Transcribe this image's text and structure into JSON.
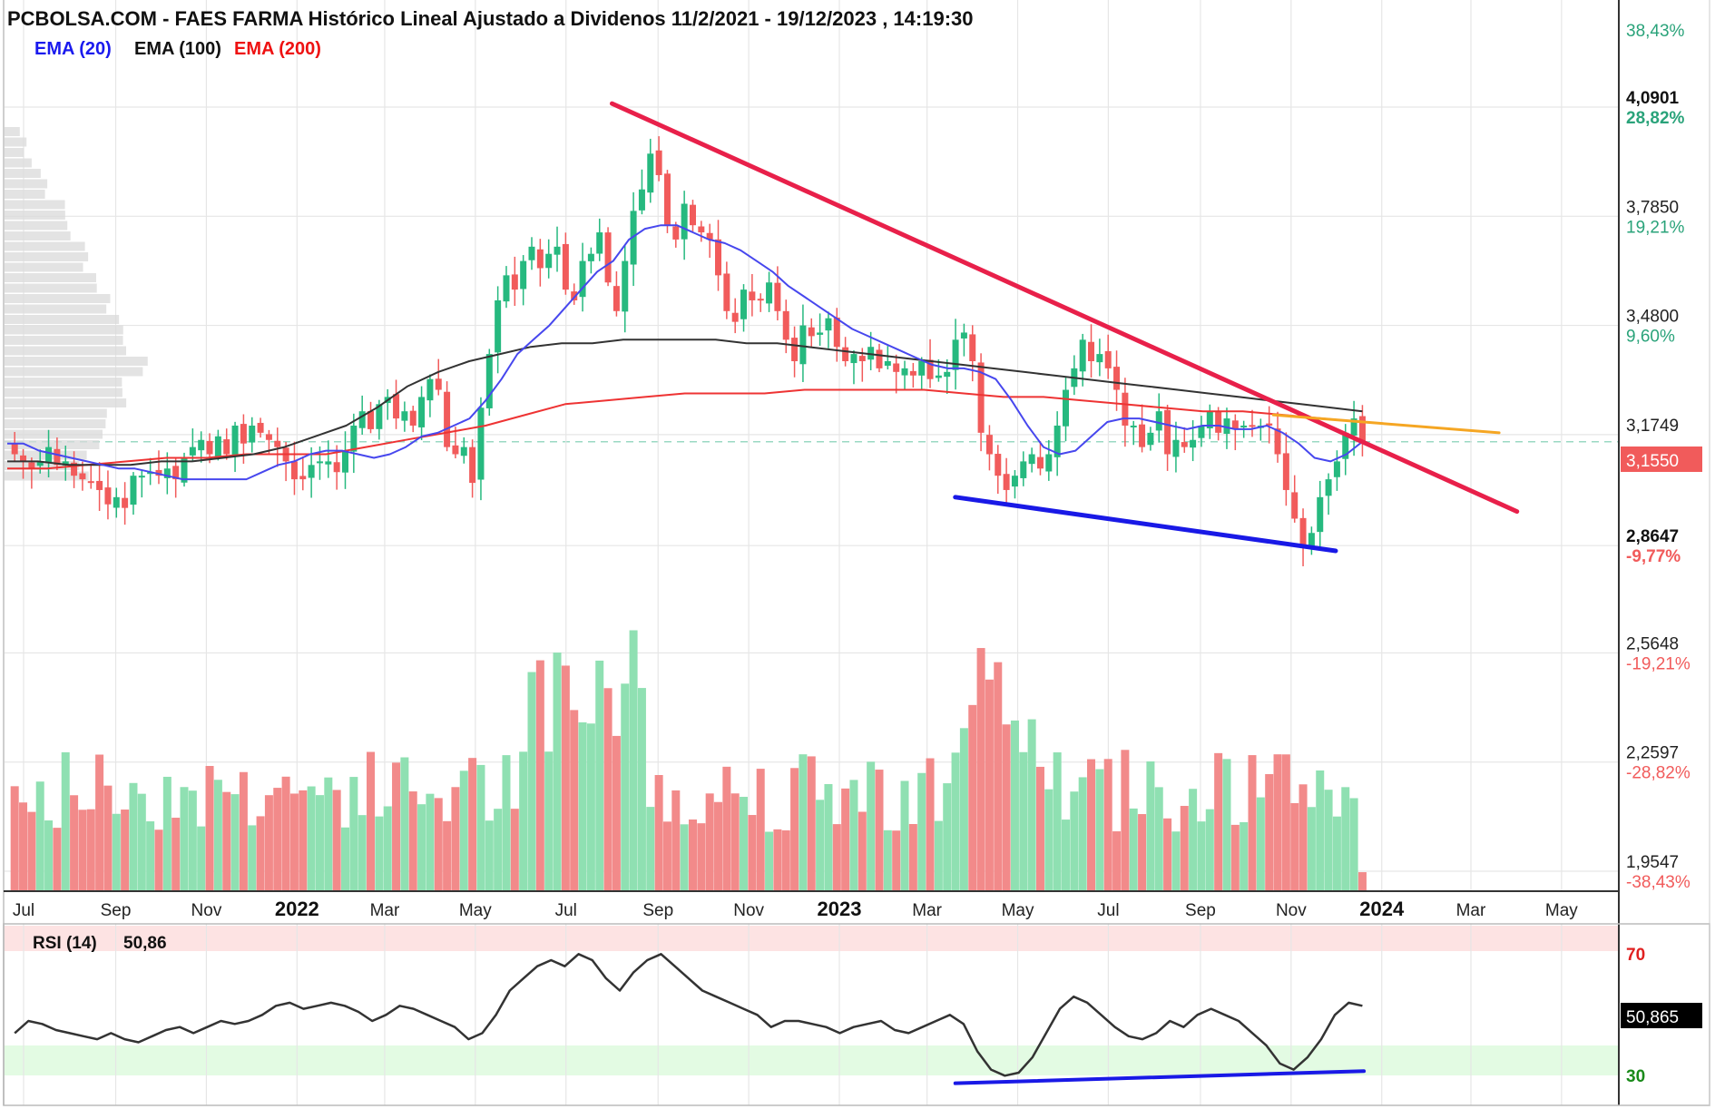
{
  "title": "PCBOLSA.COM - FAES FARMA Histórico Lineal Ajustado a Dividenos 11/2/2021 - 19/12/2023 , 14:19:30",
  "legend": [
    {
      "label": "EMA (20)",
      "color": "#1a1aee"
    },
    {
      "label": "EMA (100)",
      "color": "#111111"
    },
    {
      "label": "EMA (200)",
      "color": "#ee1111"
    }
  ],
  "chart_data": [
    {
      "type": "candlestick",
      "title": "PCBOLSA.COM - FAES FARMA Histórico Lineal Ajustado a Dividenos 11/2/2021 - 19/12/2023 , 14:19:30",
      "ylim": [
        1.9547,
        4.2
      ],
      "x_range": [
        "2021-06-20",
        "2024-05-31"
      ],
      "y_ticks": [
        {
          "price": "4,0901",
          "pct": "28,82%",
          "value": 4.0901,
          "bold": true
        },
        {
          "price": "3,7850",
          "pct": "19,21%",
          "value": 3.785
        },
        {
          "price": "3,4800",
          "pct": "9,60%",
          "value": 3.48
        },
        {
          "price": "3,1749",
          "pct": "",
          "value": 3.1749
        },
        {
          "price": "2,8647",
          "pct": "-9,77%",
          "value": 2.8647,
          "bold": true
        },
        {
          "price": "2,5648",
          "pct": "-19,21%",
          "value": 2.5648
        },
        {
          "price": "2,2597",
          "pct": "-28,82%",
          "value": 2.2597
        },
        {
          "price": "1,9547",
          "pct": "-38,43%",
          "value": 1.9547
        }
      ],
      "top_pct_label": "38,43%",
      "last_price": {
        "label": "3,1550",
        "value": 3.155
      },
      "x_ticks": [
        {
          "label": "Jul",
          "date": "2021-07-01",
          "bold": false
        },
        {
          "label": "Sep",
          "date": "2021-09-01",
          "bold": false
        },
        {
          "label": "Nov",
          "date": "2021-11-01",
          "bold": false
        },
        {
          "label": "2022",
          "date": "2022-01-01",
          "bold": true
        },
        {
          "label": "Mar",
          "date": "2022-03-01",
          "bold": false
        },
        {
          "label": "May",
          "date": "2022-05-01",
          "bold": false
        },
        {
          "label": "Jul",
          "date": "2022-07-01",
          "bold": false
        },
        {
          "label": "Sep",
          "date": "2022-09-01",
          "bold": false
        },
        {
          "label": "Nov",
          "date": "2022-11-01",
          "bold": false
        },
        {
          "label": "2023",
          "date": "2023-01-01",
          "bold": true
        },
        {
          "label": "Mar",
          "date": "2023-03-01",
          "bold": false
        },
        {
          "label": "May",
          "date": "2023-05-01",
          "bold": false
        },
        {
          "label": "Jul",
          "date": "2023-07-01",
          "bold": false
        },
        {
          "label": "Sep",
          "date": "2023-09-01",
          "bold": false
        },
        {
          "label": "Nov",
          "date": "2023-11-01",
          "bold": false
        },
        {
          "label": "2024",
          "date": "2024-01-01",
          "bold": true
        },
        {
          "label": "Mar",
          "date": "2024-03-01",
          "bold": false
        },
        {
          "label": "May",
          "date": "2024-05-01",
          "bold": false
        }
      ],
      "weekly_close": [
        3.12,
        3.1,
        3.08,
        3.1,
        3.14,
        3.09,
        3.1,
        3.06,
        3.05,
        3.04,
        3.02,
        2.98,
        3.0,
        2.97,
        3.06,
        3.06,
        3.07,
        3.06,
        3.08,
        3.05,
        3.11,
        3.14,
        3.16,
        3.12,
        3.17,
        3.12,
        3.2,
        3.15,
        3.2,
        3.18,
        3.16,
        3.14,
        3.1,
        3.05,
        3.05,
        3.09,
        3.1,
        3.1,
        3.07,
        3.13,
        3.2,
        3.24,
        3.19,
        3.26,
        3.28,
        3.22,
        3.24,
        3.2,
        3.28,
        3.33,
        3.3,
        3.14,
        3.12,
        3.14,
        3.04,
        3.25,
        3.4,
        3.55,
        3.62,
        3.58,
        3.66,
        3.7,
        3.64,
        3.68,
        3.7,
        3.58,
        3.55,
        3.66,
        3.68,
        3.74,
        3.6,
        3.52,
        3.66,
        3.8,
        3.86,
        3.96,
        3.9,
        3.76,
        3.72,
        3.82,
        3.76,
        3.74,
        3.72,
        3.62,
        3.52,
        3.49,
        3.58,
        3.55,
        3.55,
        3.6,
        3.52,
        3.44,
        3.38,
        3.48,
        3.45,
        3.46,
        3.5,
        3.42,
        3.38,
        3.4,
        3.38,
        3.42,
        3.36,
        3.38,
        3.35,
        3.36,
        3.34,
        3.38,
        3.33,
        3.34,
        3.35,
        3.44,
        3.46,
        3.38,
        3.18,
        3.12,
        3.06,
        3.02,
        3.06,
        3.1,
        3.12,
        3.08,
        3.12,
        3.2,
        3.3,
        3.36,
        3.44,
        3.38,
        3.4,
        3.36,
        3.3,
        3.2,
        3.2,
        3.14,
        3.18,
        3.24,
        3.12,
        3.16,
        3.14,
        3.16,
        3.2,
        3.24,
        3.18,
        3.22,
        3.19,
        3.2,
        3.2,
        3.2,
        3.2,
        3.12,
        3.02,
        2.94,
        2.86,
        2.9,
        3.0,
        3.05,
        3.1,
        3.18,
        3.22,
        3.155
      ],
      "ema20": [
        3.15,
        3.15,
        3.13,
        3.12,
        3.11,
        3.1,
        3.09,
        3.08,
        3.08,
        3.07,
        3.06,
        3.05,
        3.05,
        3.05,
        3.05,
        3.05,
        3.07,
        3.09,
        3.1,
        3.12,
        3.13,
        3.13,
        3.12,
        3.11,
        3.12,
        3.14,
        3.17,
        3.18,
        3.2,
        3.22,
        3.27,
        3.33,
        3.4,
        3.44,
        3.48,
        3.53,
        3.58,
        3.63,
        3.66,
        3.72,
        3.75,
        3.76,
        3.76,
        3.74,
        3.72,
        3.71,
        3.69,
        3.66,
        3.63,
        3.59,
        3.56,
        3.53,
        3.5,
        3.47,
        3.45,
        3.43,
        3.41,
        3.39,
        3.37,
        3.36,
        3.36,
        3.35,
        3.33,
        3.27,
        3.2,
        3.14,
        3.12,
        3.13,
        3.17,
        3.21,
        3.22,
        3.22,
        3.21,
        3.2,
        3.19,
        3.2,
        3.2,
        3.19,
        3.19,
        3.2,
        3.18,
        3.15,
        3.11,
        3.1,
        3.12,
        3.155
      ],
      "ema100": [
        3.1,
        3.1,
        3.09,
        3.09,
        3.09,
        3.1,
        3.1,
        3.11,
        3.12,
        3.14,
        3.17,
        3.2,
        3.25,
        3.31,
        3.35,
        3.38,
        3.4,
        3.42,
        3.43,
        3.43,
        3.44,
        3.44,
        3.44,
        3.44,
        3.43,
        3.43,
        3.42,
        3.41,
        3.4,
        3.39,
        3.38,
        3.37,
        3.36,
        3.35,
        3.34,
        3.33,
        3.32,
        3.31,
        3.3,
        3.29,
        3.28,
        3.27,
        3.26,
        3.25,
        3.24
      ],
      "ema200": [
        3.08,
        3.08,
        3.09,
        3.1,
        3.11,
        3.11,
        3.12,
        3.12,
        3.12,
        3.14,
        3.16,
        3.18,
        3.2,
        3.23,
        3.26,
        3.27,
        3.28,
        3.29,
        3.29,
        3.29,
        3.3,
        3.3,
        3.3,
        3.3,
        3.29,
        3.28,
        3.28,
        3.27,
        3.26,
        3.25,
        3.24,
        3.24,
        3.23,
        3.22,
        3.21
      ],
      "volume_max": 100,
      "trendlines": [
        {
          "name": "resistance",
          "color": "#e8204a",
          "from": {
            "date": "2022-08-01",
            "price": 4.1
          },
          "to": {
            "date": "2024-04-01",
            "price": 2.96
          }
        },
        {
          "name": "support",
          "color": "#1919e6",
          "from": {
            "date": "2023-03-20",
            "price": 3.0
          },
          "to": {
            "date": "2023-12-01",
            "price": 2.85
          }
        },
        {
          "name": "projection",
          "color": "#f5a623",
          "from": {
            "date": "2023-10-20",
            "price": 3.23
          },
          "to": {
            "date": "2024-03-20",
            "price": 3.18
          }
        }
      ]
    },
    {
      "type": "line",
      "name": "RSI (14)",
      "value_label": "50,86",
      "last_label": "50,865",
      "levels": [
        {
          "label": "70",
          "value": 70,
          "color": "#e02020"
        },
        {
          "label": "30",
          "value": 30,
          "color": "#1a8a1a"
        }
      ],
      "ylim": [
        25,
        80
      ],
      "values": [
        46,
        50,
        49,
        47,
        46,
        45,
        44,
        46,
        44,
        43,
        45,
        47,
        48,
        46,
        48,
        50,
        49,
        50,
        52,
        55,
        56,
        54,
        55,
        56,
        55,
        53,
        50,
        52,
        55,
        54,
        52,
        50,
        48,
        44,
        46,
        52,
        60,
        64,
        68,
        70,
        68,
        72,
        70,
        64,
        60,
        66,
        70,
        72,
        68,
        64,
        60,
        58,
        56,
        54,
        52,
        48,
        50,
        50,
        49,
        48,
        46,
        48,
        49,
        50,
        47,
        46,
        48,
        50,
        52,
        49,
        40,
        34,
        32,
        33,
        38,
        46,
        54,
        58,
        56,
        52,
        48,
        45,
        44,
        46,
        50,
        48,
        52,
        54,
        52,
        50,
        46,
        42,
        36,
        34,
        38,
        44,
        52,
        56,
        55
      ],
      "trendline": {
        "color": "#1919e6",
        "from": {
          "date": "2023-03-20",
          "value": 29.5
        },
        "to": {
          "date": "2023-12-20",
          "value": 33.5
        }
      }
    }
  ]
}
